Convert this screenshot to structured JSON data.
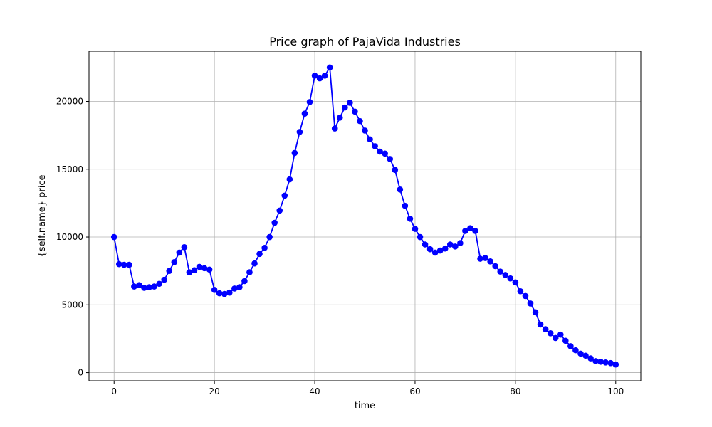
{
  "chart_data": {
    "type": "line",
    "title": "Price graph of PajaVida Industries",
    "xlabel": "time",
    "ylabel": "{self.name} price",
    "xlim": [
      -5,
      105
    ],
    "ylim": [
      -600,
      23700
    ],
    "xticks": [
      0,
      20,
      40,
      60,
      80,
      100
    ],
    "yticks": [
      0,
      5000,
      10000,
      15000,
      20000
    ],
    "grid": true,
    "colors": {
      "series": "#0000ff",
      "grid": "#b0b0b0",
      "axes": "#000000"
    },
    "series": [
      {
        "name": "",
        "marker": "circle",
        "x": [
          0,
          1,
          2,
          3,
          4,
          5,
          6,
          7,
          8,
          9,
          10,
          11,
          12,
          13,
          14,
          15,
          16,
          17,
          18,
          19,
          20,
          21,
          22,
          23,
          24,
          25,
          26,
          27,
          28,
          29,
          30,
          31,
          32,
          33,
          34,
          35,
          36,
          37,
          38,
          39,
          40,
          41,
          42,
          43,
          44,
          45,
          46,
          47,
          48,
          49,
          50,
          51,
          52,
          53,
          54,
          55,
          56,
          57,
          58,
          59,
          60,
          61,
          62,
          63,
          64,
          65,
          66,
          67,
          68,
          69,
          70,
          71,
          72,
          73,
          74,
          75,
          76,
          77,
          78,
          79,
          80,
          81,
          82,
          83,
          84,
          85,
          86,
          87,
          88,
          89,
          90,
          91,
          92,
          93,
          94,
          95,
          96,
          97,
          98,
          99,
          100
        ],
        "values": [
          10000,
          8000,
          7950,
          7950,
          6350,
          6450,
          6250,
          6300,
          6350,
          6550,
          6850,
          7500,
          8150,
          8850,
          9250,
          7400,
          7550,
          7800,
          7700,
          7600,
          6100,
          5850,
          5800,
          5900,
          6200,
          6300,
          6750,
          7400,
          8050,
          8750,
          9200,
          10000,
          11050,
          11950,
          13050,
          14250,
          16200,
          17750,
          19100,
          19950,
          21900,
          21700,
          21900,
          22500,
          18000,
          18800,
          19550,
          19900,
          19250,
          18550,
          17850,
          17200,
          16700,
          16300,
          16150,
          15750,
          14950,
          13500,
          12300,
          11350,
          10600,
          10000,
          9450,
          9100,
          8850,
          9000,
          9150,
          9450,
          9300,
          9550,
          10450,
          10650,
          10450,
          8400,
          8450,
          8200,
          7850,
          7450,
          7200,
          6950,
          6650,
          6000,
          5650,
          5100,
          4450,
          3550,
          3200,
          2900,
          2550,
          2800,
          2350,
          1950,
          1650,
          1400,
          1250,
          1050,
          850,
          800,
          750,
          700,
          600
        ]
      }
    ]
  }
}
